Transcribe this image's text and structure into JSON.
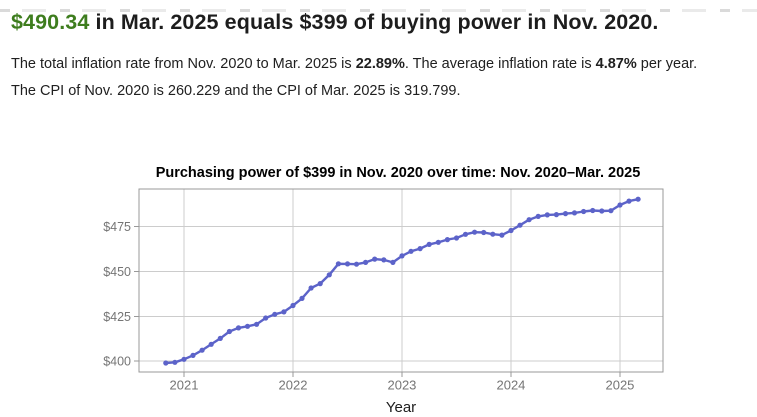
{
  "headline": {
    "amount": "$490.34",
    "rest": " in Mar. 2025 equals $399 of buying power in Nov. 2020."
  },
  "paragraphs": {
    "inflation": {
      "lead": "The total inflation rate from Nov. 2020 to Mar. 2025 is ",
      "total_rate": "22.89%",
      "mid": ". The average inflation rate is ",
      "avg_rate": "4.87%",
      "tail": " per year."
    },
    "cpi": "The CPI of Nov. 2020 is 260.229 and the CPI of Mar. 2025 is 319.799."
  },
  "colors": {
    "accent_green": "#3e7d1e",
    "line": "#5c63c9",
    "grid": "#cccccc",
    "axis_border": "#999999",
    "tick_label": "#757575"
  },
  "chart_data": {
    "type": "line",
    "title": "Purchasing power of $399 in Nov. 2020 over time: Nov. 2020–Mar. 2025",
    "xlabel": "Year",
    "ylabel": "",
    "x_start_month": "2020-11",
    "x_end_month": "2025-03",
    "x_frequency": "monthly",
    "x_tick_labels": [
      "2021",
      "2022",
      "2023",
      "2024",
      "2025"
    ],
    "x_tick_month_indices": [
      2,
      14,
      26,
      38,
      50
    ],
    "y_tick_labels": [
      "$400",
      "$425",
      "$450",
      "$475"
    ],
    "y_tick_values": [
      400,
      425,
      450,
      475
    ],
    "ylim": [
      394,
      496
    ],
    "grid": true,
    "legend": false,
    "series": [
      {
        "name": "Purchasing power of $399",
        "values": [
          399.0,
          399.38,
          401.07,
          403.27,
          406.13,
          409.46,
          412.75,
          416.58,
          418.58,
          419.45,
          420.59,
          424.08,
          426.17,
          427.48,
          431.07,
          435.01,
          440.82,
          443.28,
          448.17,
          454.32,
          454.27,
          454.11,
          455.08,
          456.93,
          456.47,
          455.07,
          458.71,
          461.27,
          462.79,
          465.13,
          466.3,
          467.81,
          468.7,
          470.75,
          471.92,
          471.74,
          470.79,
          470.32,
          472.88,
          475.81,
          478.89,
          480.75,
          481.55,
          481.71,
          482.27,
          482.66,
          483.44,
          483.99,
          483.73,
          483.9,
          487.07,
          489.24,
          490.34
        ]
      }
    ]
  }
}
